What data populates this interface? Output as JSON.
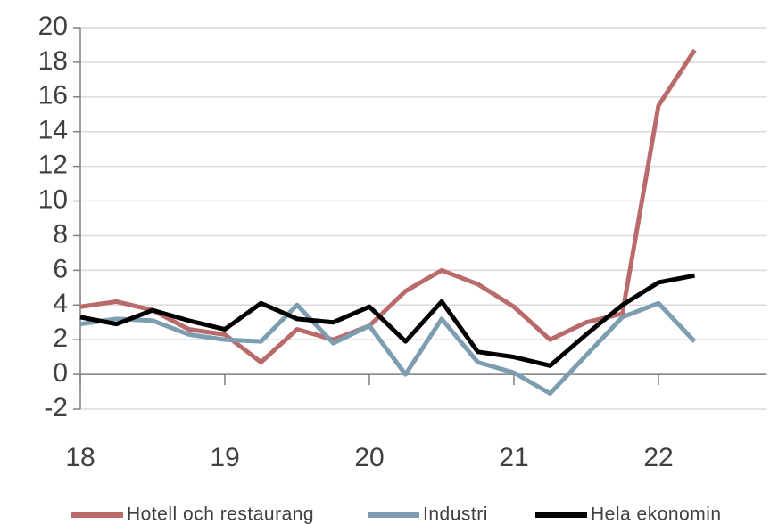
{
  "chart_data": {
    "type": "line",
    "x": [
      18,
      18.25,
      18.5,
      18.75,
      19,
      19.25,
      19.5,
      19.75,
      20,
      20.25,
      20.5,
      20.75,
      21,
      21.25,
      21.5,
      21.75,
      22,
      22.25
    ],
    "series": [
      {
        "name": "Hotell och restaurang",
        "color": "#b96b6c",
        "values": [
          3.9,
          4.2,
          3.7,
          2.6,
          2.3,
          0.7,
          2.6,
          2.0,
          2.8,
          4.8,
          6.0,
          5.2,
          3.9,
          2.0,
          3.0,
          3.5,
          15.5,
          18.7
        ]
      },
      {
        "name": "Industri",
        "color": "#7d9db0",
        "values": [
          2.9,
          3.2,
          3.1,
          2.3,
          2.0,
          1.9,
          4.0,
          1.8,
          2.8,
          0,
          3.2,
          0.7,
          0.1,
          -1.1,
          1.1,
          3.3,
          4.1,
          1.9
        ]
      },
      {
        "name": "Hela ekonomin",
        "color": "#000000",
        "values": [
          3.3,
          2.9,
          3.7,
          3.1,
          2.6,
          4.1,
          3.2,
          3.0,
          3.9,
          1.9,
          4.2,
          1.3,
          1.0,
          0.5,
          2.3,
          4.0,
          5.3,
          5.7
        ]
      }
    ],
    "xlim": [
      18,
      22.75
    ],
    "xticks": [
      18,
      19,
      20,
      21,
      22
    ],
    "ylim": [
      -2,
      20
    ],
    "yticks": [
      -2,
      0,
      2,
      4,
      6,
      8,
      10,
      12,
      14,
      16,
      18,
      20
    ],
    "grid": true,
    "legend": "bottom"
  }
}
